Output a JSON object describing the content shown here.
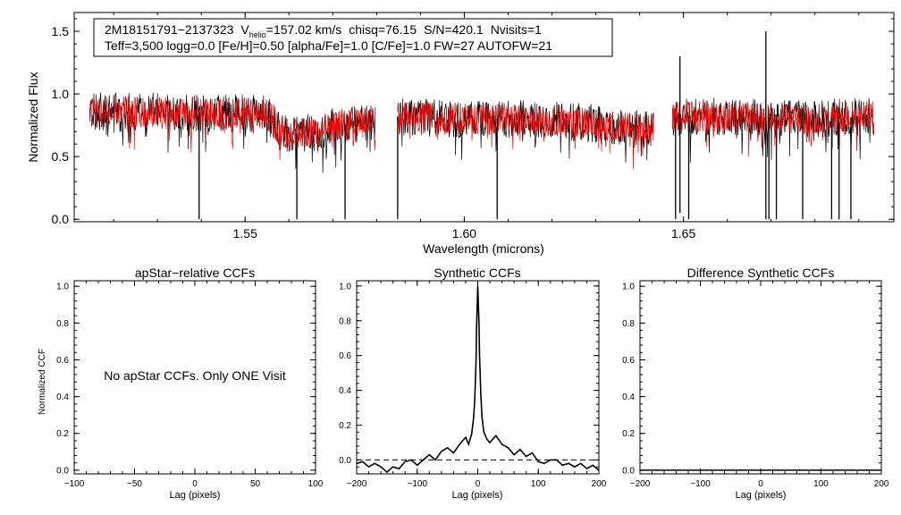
{
  "chart_data": [
    {
      "type": "line",
      "id": "spectrum",
      "xlabel": "Wavelength (microns)",
      "ylabel": "Normalized Flux",
      "xlim": [
        1.511,
        1.698
      ],
      "ylim": [
        -0.02,
        1.65
      ],
      "xticks": [
        1.55,
        1.6,
        1.65
      ],
      "xtick_labels": [
        "1.55",
        "1.60",
        "1.65"
      ],
      "yticks": [
        0.0,
        0.5,
        1.0,
        1.5
      ],
      "ytick_labels": [
        "0.0",
        "0.5",
        "1.0",
        "1.5"
      ],
      "annotation": {
        "star_id": "2M18151791−2137323",
        "v_symbol": "V",
        "v_subscript": "helio",
        "v_value": "=157.02 km/s",
        "chisq": "chisq=76.15",
        "sn": "S/N=420.1",
        "nvisits": "Nvisits=1",
        "line2": "Teff=3,500 logg=0.0 [Fe/H]=0.50 [alpha/Fe]=1.0 [C/Fe]=1.0 FW=27 AUTOFW=21"
      },
      "series": [
        {
          "name": "observed",
          "color": "#000000"
        },
        {
          "name": "synthetic",
          "color": "#ff0000"
        }
      ],
      "chips": [
        {
          "x": [
            1.5145,
            1.5797
          ]
        },
        {
          "x": [
            1.5848,
            1.6432
          ]
        },
        {
          "x": [
            1.6475,
            1.6935
          ]
        }
      ],
      "baseline": [
        [
          1.5145,
          0.86
        ],
        [
          1.525,
          0.86
        ],
        [
          1.545,
          0.85
        ],
        [
          1.555,
          0.84
        ],
        [
          1.558,
          0.7
        ],
        [
          1.5605,
          0.68
        ],
        [
          1.5665,
          0.7
        ],
        [
          1.572,
          0.76
        ],
        [
          1.5797,
          0.76
        ],
        [
          1.5848,
          0.82
        ],
        [
          1.6,
          0.8
        ],
        [
          1.612,
          0.8
        ],
        [
          1.625,
          0.78
        ],
        [
          1.64,
          0.72
        ],
        [
          1.6432,
          0.72
        ],
        [
          1.6475,
          0.82
        ],
        [
          1.66,
          0.82
        ],
        [
          1.675,
          0.8
        ],
        [
          1.6935,
          0.82
        ]
      ],
      "deep_lines": [
        {
          "x": 1.5395,
          "y": 0.0
        },
        {
          "x": 1.5618,
          "y": 0.0
        },
        {
          "x": 1.5728,
          "y": 0.0
        },
        {
          "x": 1.5848,
          "y": 0.0
        },
        {
          "x": 1.6075,
          "y": 0.0
        },
        {
          "x": 1.6482,
          "y": 0.0
        },
        {
          "x": 1.6492,
          "y": 0.05
        },
        {
          "x": 1.6512,
          "y": 0.0
        },
        {
          "x": 1.6688,
          "y": 0.0
        },
        {
          "x": 1.6695,
          "y": 0.0
        },
        {
          "x": 1.6712,
          "y": 0.0
        },
        {
          "x": 1.6772,
          "y": 0.0
        },
        {
          "x": 1.6838,
          "y": 0.0
        },
        {
          "x": 1.6855,
          "y": 0.0
        },
        {
          "x": 1.6882,
          "y": 0.0
        }
      ],
      "spikes": [
        {
          "x": 1.6492,
          "y": 1.3
        },
        {
          "x": 1.6688,
          "y": 1.5
        }
      ]
    },
    {
      "type": "line",
      "id": "apstar-ccf",
      "title": "apStar−relative CCFs",
      "xlabel": "Lag (pixels)",
      "ylabel": "Normalized CCF",
      "xlim": [
        -100,
        100
      ],
      "ylim": [
        -0.02,
        1.03
      ],
      "xticks": [
        -100,
        -50,
        0,
        50,
        100
      ],
      "xtick_labels": [
        "−100",
        "−50",
        "0",
        "50",
        "100"
      ],
      "yticks": [
        0.0,
        0.2,
        0.4,
        0.6,
        0.8,
        1.0
      ],
      "ytick_labels": [
        "0.0",
        "0.2",
        "0.4",
        "0.6",
        "0.8",
        "1.0"
      ],
      "message": "No apStar CCFs.  Only ONE Visit",
      "series": []
    },
    {
      "type": "line",
      "id": "synthetic-ccf",
      "title": "Synthetic CCFs",
      "xlabel": "Lag (pixels)",
      "ylabel": "",
      "xlim": [
        -200,
        200
      ],
      "ylim": [
        -0.08,
        1.03
      ],
      "xticks": [
        -200,
        -100,
        0,
        100,
        200
      ],
      "xtick_labels": [
        "−200",
        "−100",
        "0",
        "100",
        "200"
      ],
      "yticks": [
        0.0,
        0.2,
        0.4,
        0.6,
        0.8,
        1.0
      ],
      "ytick_labels": [
        "0.0",
        "0.2",
        "0.4",
        "0.6",
        "0.8",
        "1.0"
      ],
      "reference_line_y": 0.0,
      "series": [
        {
          "name": "synthetic CCF",
          "x": [
            -200,
            -190,
            -180,
            -170,
            -160,
            -150,
            -140,
            -130,
            -120,
            -110,
            -100,
            -90,
            -80,
            -70,
            -60,
            -50,
            -40,
            -30,
            -20,
            -15,
            -10,
            -7,
            -5,
            -3,
            -2,
            0,
            2,
            3,
            5,
            7,
            10,
            15,
            20,
            30,
            40,
            50,
            60,
            70,
            80,
            90,
            100,
            110,
            120,
            130,
            140,
            150,
            160,
            170,
            180,
            190,
            200
          ],
          "y": [
            -0.02,
            -0.01,
            -0.04,
            -0.02,
            -0.04,
            -0.07,
            -0.04,
            -0.05,
            -0.01,
            0.0,
            -0.03,
            0.0,
            0.03,
            0.0,
            0.05,
            0.07,
            0.04,
            0.09,
            0.13,
            0.09,
            0.15,
            0.24,
            0.34,
            0.55,
            0.75,
            1.0,
            0.78,
            0.6,
            0.38,
            0.25,
            0.16,
            0.12,
            0.1,
            0.14,
            0.09,
            0.07,
            0.03,
            0.06,
            0.02,
            0.04,
            -0.01,
            -0.02,
            0.0,
            0.0,
            -0.03,
            -0.02,
            -0.04,
            -0.02,
            -0.05,
            -0.03,
            -0.06
          ]
        }
      ]
    },
    {
      "type": "line",
      "id": "difference-ccf",
      "title": "Difference Synthetic CCFs",
      "xlabel": "Lag (pixels)",
      "ylabel": "",
      "xlim": [
        -200,
        200
      ],
      "ylim": [
        -0.02,
        1.03
      ],
      "xticks": [
        -200,
        -100,
        0,
        100,
        200
      ],
      "xtick_labels": [
        "−200",
        "−100",
        "0",
        "100",
        "200"
      ],
      "yticks": [
        0.0,
        0.2,
        0.4,
        0.6,
        0.8,
        1.0
      ],
      "ytick_labels": [
        "0.0",
        "0.2",
        "0.4",
        "0.6",
        "0.8",
        "1.0"
      ],
      "series": [
        {
          "name": "difference CCF",
          "x": [
            -200,
            200
          ],
          "y": [
            0.0,
            0.0
          ]
        }
      ]
    }
  ]
}
